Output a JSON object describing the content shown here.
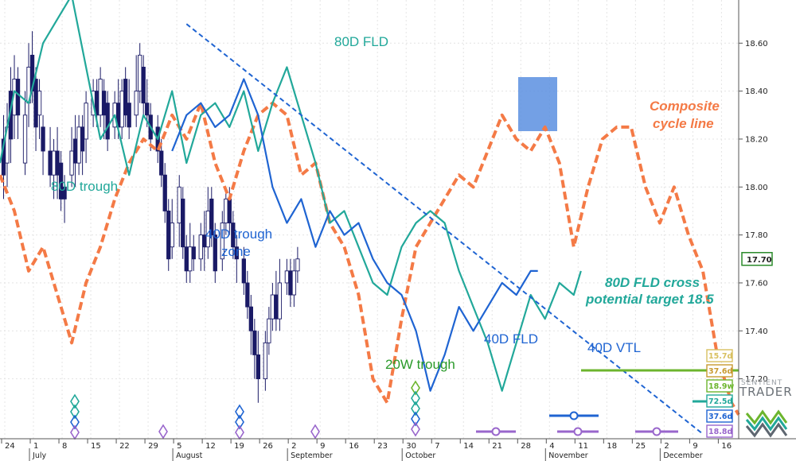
{
  "chart_data": {
    "type": "line",
    "y_axis": {
      "ylim": [
        16.95,
        18.78
      ],
      "ticks": [
        "17.20",
        "17.40",
        "17.60",
        "17.80",
        "18.00",
        "18.20",
        "18.40",
        "18.60"
      ],
      "side": "right"
    },
    "x_axis": {
      "day_ticks": [
        "24",
        "1",
        "8",
        "15",
        "22",
        "29",
        "5",
        "12",
        "19",
        "26",
        "2",
        "9",
        "16",
        "23",
        "30",
        "7",
        "14",
        "21",
        "28",
        "4",
        "11",
        "18",
        "25",
        "2",
        "9",
        "16"
      ],
      "months": [
        "July",
        "August",
        "September",
        "October",
        "November",
        "December"
      ]
    },
    "current_price_label": "17.70",
    "grid": true,
    "colors": {
      "composite": "#f47a46",
      "fld80": "#22a89a",
      "fld40": "#1f64d2",
      "vtl": "#1f64d2",
      "candle_up": "#ffffff",
      "candle_down": "#1a1a66",
      "green": "#6cb52d",
      "purple": "#9966cc",
      "highlight": "#5b8fe0"
    },
    "series": [
      {
        "name": "Composite cycle line",
        "style": "dashed",
        "x": [
          0,
          4,
          8,
          12,
          16,
          20,
          24,
          28,
          32,
          36,
          40,
          44,
          48,
          52,
          56,
          60,
          64,
          68,
          72,
          76,
          80,
          84,
          88,
          92,
          96,
          100,
          104,
          108,
          112,
          116,
          120,
          124,
          128,
          132,
          136,
          140,
          144,
          148,
          152,
          156,
          160,
          164,
          168,
          172,
          176,
          180,
          184,
          188,
          192,
          196,
          200,
          204,
          206
        ],
        "y": [
          18.05,
          17.9,
          17.65,
          17.75,
          17.55,
          17.35,
          17.6,
          17.75,
          17.95,
          18.1,
          18.2,
          18.15,
          18.3,
          18.2,
          18.35,
          18.1,
          17.95,
          18.15,
          18.3,
          18.35,
          18.3,
          18.05,
          18.1,
          17.85,
          17.75,
          17.55,
          17.2,
          17.1,
          17.45,
          17.75,
          17.85,
          17.95,
          18.05,
          18.0,
          18.15,
          18.3,
          18.2,
          18.15,
          18.25,
          18.1,
          17.75,
          18.0,
          18.2,
          18.25,
          18.25,
          18.0,
          17.85,
          18.0,
          17.8,
          17.65,
          17.3,
          17.1,
          17.05
        ]
      },
      {
        "name": "80D FLD",
        "style": "solid",
        "x": [
          0,
          4,
          8,
          12,
          16,
          20,
          24,
          28,
          32,
          36,
          40,
          44,
          48,
          52,
          56,
          60,
          64,
          68,
          72,
          76,
          80,
          84,
          88,
          92,
          96,
          100,
          104,
          108,
          112,
          116,
          120,
          124,
          128,
          132,
          136,
          140,
          144,
          148,
          152,
          156,
          160,
          162
        ],
        "y": [
          18.1,
          18.4,
          18.35,
          18.6,
          18.7,
          18.8,
          18.5,
          18.2,
          18.3,
          18.05,
          18.3,
          18.2,
          18.4,
          18.1,
          18.3,
          18.35,
          18.25,
          18.4,
          18.15,
          18.35,
          18.5,
          18.3,
          18.1,
          17.85,
          17.9,
          17.75,
          17.6,
          17.55,
          17.75,
          17.85,
          17.9,
          17.85,
          17.65,
          17.5,
          17.35,
          17.15,
          17.35,
          17.55,
          17.45,
          17.6,
          17.55,
          17.65
        ]
      },
      {
        "name": "40D FLD",
        "style": "solid",
        "x": [
          48,
          52,
          56,
          60,
          64,
          68,
          72,
          76,
          80,
          84,
          88,
          92,
          96,
          100,
          104,
          108,
          112,
          116,
          120,
          124,
          128,
          132,
          136,
          140,
          144,
          148,
          150
        ],
        "y": [
          18.15,
          18.3,
          18.35,
          18.25,
          18.3,
          18.45,
          18.3,
          18.0,
          17.85,
          17.95,
          17.75,
          17.9,
          17.8,
          17.85,
          17.7,
          17.6,
          17.55,
          17.4,
          17.15,
          17.3,
          17.5,
          17.4,
          17.5,
          17.6,
          17.55,
          17.65,
          17.65
        ]
      },
      {
        "name": "40D VTL",
        "style": "dashed",
        "x": [
          52,
          196
        ],
        "y": [
          18.68,
          16.97
        ]
      }
    ],
    "candles": [
      {
        "x": 1,
        "o": 18.2,
        "c": 18.05,
        "h": 18.3,
        "l": 17.95
      },
      {
        "x": 2,
        "o": 18.1,
        "c": 18.25,
        "h": 18.35,
        "l": 18.0
      },
      {
        "x": 3,
        "o": 18.4,
        "c": 18.2,
        "h": 18.5,
        "l": 18.1
      },
      {
        "x": 4,
        "o": 18.3,
        "c": 18.45,
        "h": 18.55,
        "l": 18.2
      },
      {
        "x": 5,
        "o": 18.45,
        "c": 18.3,
        "h": 18.5,
        "l": 18.2
      },
      {
        "x": 7,
        "o": 18.1,
        "c": 18.3,
        "h": 18.4,
        "l": 18.05
      },
      {
        "x": 8,
        "o": 18.35,
        "c": 18.5,
        "h": 18.6,
        "l": 18.25
      },
      {
        "x": 9,
        "o": 18.55,
        "c": 18.4,
        "h": 18.65,
        "l": 18.35
      },
      {
        "x": 10,
        "o": 18.45,
        "c": 18.25,
        "h": 18.5,
        "l": 18.15
      },
      {
        "x": 11,
        "o": 18.3,
        "c": 18.4,
        "h": 18.45,
        "l": 18.2
      },
      {
        "x": 12,
        "o": 18.25,
        "c": 18.15,
        "h": 18.3,
        "l": 18.05
      },
      {
        "x": 14,
        "o": 18.15,
        "c": 18.05,
        "h": 18.25,
        "l": 18.0
      },
      {
        "x": 15,
        "o": 18.05,
        "c": 18.15,
        "h": 18.2,
        "l": 17.95
      },
      {
        "x": 16,
        "o": 18.15,
        "c": 18.05,
        "h": 18.25,
        "l": 17.95
      },
      {
        "x": 17,
        "o": 18.1,
        "c": 17.95,
        "h": 18.15,
        "l": 17.9
      },
      {
        "x": 18,
        "o": 18.0,
        "c": 17.95,
        "h": 18.05,
        "l": 17.85
      },
      {
        "x": 20,
        "o": 18.05,
        "c": 18.15,
        "h": 18.25,
        "l": 18.0
      },
      {
        "x": 21,
        "o": 18.2,
        "c": 18.1,
        "h": 18.3,
        "l": 18.0
      },
      {
        "x": 22,
        "o": 18.1,
        "c": 18.25,
        "h": 18.3,
        "l": 18.05
      },
      {
        "x": 23,
        "o": 18.25,
        "c": 18.15,
        "h": 18.3,
        "l": 18.05
      },
      {
        "x": 24,
        "o": 18.2,
        "c": 18.35,
        "h": 18.4,
        "l": 18.1
      },
      {
        "x": 26,
        "o": 18.3,
        "c": 18.4,
        "h": 18.45,
        "l": 18.25
      },
      {
        "x": 27,
        "o": 18.4,
        "c": 18.3,
        "h": 18.45,
        "l": 18.25
      },
      {
        "x": 28,
        "o": 18.3,
        "c": 18.45,
        "h": 18.5,
        "l": 18.25
      },
      {
        "x": 29,
        "o": 18.4,
        "c": 18.3,
        "h": 18.45,
        "l": 18.2
      },
      {
        "x": 30,
        "o": 18.35,
        "c": 18.2,
        "h": 18.4,
        "l": 18.15
      },
      {
        "x": 32,
        "o": 18.25,
        "c": 18.35,
        "h": 18.4,
        "l": 18.2
      },
      {
        "x": 33,
        "o": 18.35,
        "c": 18.25,
        "h": 18.45,
        "l": 18.2
      },
      {
        "x": 34,
        "o": 18.25,
        "c": 18.4,
        "h": 18.45,
        "l": 18.2
      },
      {
        "x": 35,
        "o": 18.45,
        "c": 18.3,
        "h": 18.5,
        "l": 18.25
      },
      {
        "x": 36,
        "o": 18.35,
        "c": 18.25,
        "h": 18.45,
        "l": 18.2
      },
      {
        "x": 38,
        "o": 18.3,
        "c": 18.4,
        "h": 18.55,
        "l": 18.25
      },
      {
        "x": 39,
        "o": 18.4,
        "c": 18.55,
        "h": 18.6,
        "l": 18.35
      },
      {
        "x": 40,
        "o": 18.5,
        "c": 18.35,
        "h": 18.55,
        "l": 18.3
      },
      {
        "x": 41,
        "o": 18.35,
        "c": 18.3,
        "h": 18.45,
        "l": 18.25
      },
      {
        "x": 42,
        "o": 18.3,
        "c": 18.2,
        "h": 18.35,
        "l": 18.15
      },
      {
        "x": 44,
        "o": 18.25,
        "c": 18.15,
        "h": 18.3,
        "l": 18.1
      },
      {
        "x": 45,
        "o": 18.15,
        "c": 18.05,
        "h": 18.2,
        "l": 18.0
      },
      {
        "x": 46,
        "o": 18.05,
        "c": 17.9,
        "h": 18.1,
        "l": 17.85
      },
      {
        "x": 47,
        "o": 17.9,
        "c": 17.7,
        "h": 17.95,
        "l": 17.65
      },
      {
        "x": 48,
        "o": 17.75,
        "c": 17.85,
        "h": 17.95,
        "l": 17.7
      },
      {
        "x": 50,
        "o": 17.85,
        "c": 18.0,
        "h": 18.05,
        "l": 17.75
      },
      {
        "x": 51,
        "o": 17.95,
        "c": 17.75,
        "h": 18.0,
        "l": 17.7
      },
      {
        "x": 52,
        "o": 17.75,
        "c": 17.65,
        "h": 17.8,
        "l": 17.6
      },
      {
        "x": 53,
        "o": 17.65,
        "c": 17.75,
        "h": 17.85,
        "l": 17.6
      },
      {
        "x": 54,
        "o": 17.75,
        "c": 17.7,
        "h": 17.8,
        "l": 17.65
      },
      {
        "x": 56,
        "o": 17.7,
        "c": 17.8,
        "h": 17.85,
        "l": 17.65
      },
      {
        "x": 57,
        "o": 17.8,
        "c": 17.75,
        "h": 17.9,
        "l": 17.65
      },
      {
        "x": 58,
        "o": 17.75,
        "c": 17.9,
        "h": 18.0,
        "l": 17.7
      },
      {
        "x": 59,
        "o": 17.95,
        "c": 17.8,
        "h": 18.0,
        "l": 17.75
      },
      {
        "x": 60,
        "o": 17.8,
        "c": 17.65,
        "h": 17.85,
        "l": 17.6
      },
      {
        "x": 62,
        "o": 17.7,
        "c": 17.85,
        "h": 17.9,
        "l": 17.65
      },
      {
        "x": 63,
        "o": 17.85,
        "c": 17.95,
        "h": 18.0,
        "l": 17.8
      },
      {
        "x": 64,
        "o": 17.95,
        "c": 17.85,
        "h": 18.0,
        "l": 17.8
      },
      {
        "x": 65,
        "o": 17.85,
        "c": 17.75,
        "h": 17.9,
        "l": 17.7
      },
      {
        "x": 66,
        "o": 17.75,
        "c": 17.7,
        "h": 17.8,
        "l": 17.6
      },
      {
        "x": 68,
        "o": 17.7,
        "c": 17.6,
        "h": 17.75,
        "l": 17.55
      },
      {
        "x": 69,
        "o": 17.6,
        "c": 17.5,
        "h": 17.65,
        "l": 17.45
      },
      {
        "x": 70,
        "o": 17.5,
        "c": 17.4,
        "h": 17.55,
        "l": 17.3
      },
      {
        "x": 71,
        "o": 17.4,
        "c": 17.3,
        "h": 17.45,
        "l": 17.2
      },
      {
        "x": 72,
        "o": 17.3,
        "c": 17.2,
        "h": 17.4,
        "l": 17.1
      },
      {
        "x": 74,
        "o": 17.2,
        "c": 17.35,
        "h": 17.4,
        "l": 17.15
      },
      {
        "x": 75,
        "o": 17.35,
        "c": 17.45,
        "h": 17.5,
        "l": 17.3
      },
      {
        "x": 76,
        "o": 17.45,
        "c": 17.55,
        "h": 17.6,
        "l": 17.4
      },
      {
        "x": 77,
        "o": 17.55,
        "c": 17.45,
        "h": 17.65,
        "l": 17.4
      },
      {
        "x": 78,
        "o": 17.45,
        "c": 17.6,
        "h": 17.7,
        "l": 17.4
      },
      {
        "x": 80,
        "o": 17.6,
        "c": 17.65,
        "h": 17.7,
        "l": 17.55
      },
      {
        "x": 81,
        "o": 17.65,
        "c": 17.55,
        "h": 17.7,
        "l": 17.5
      },
      {
        "x": 82,
        "o": 17.55,
        "c": 17.65,
        "h": 17.7,
        "l": 17.5
      },
      {
        "x": 83,
        "o": 17.65,
        "c": 17.7,
        "h": 17.75,
        "l": 17.6
      }
    ],
    "annotations": [
      {
        "text": "80D FLD",
        "color": "#22a89a",
        "italic": false
      },
      {
        "text": "80D trough",
        "color": "#22a89a",
        "italic": false
      },
      {
        "text": "40D trough",
        "color": "#1f64d2",
        "italic": false
      },
      {
        "text": "zone",
        "color": "#1f64d2",
        "italic": false
      },
      {
        "text": "40D FLD",
        "color": "#1f64d2",
        "italic": false
      },
      {
        "text": "40D VTL",
        "color": "#1f64d2",
        "italic": false
      },
      {
        "text": "20W trough",
        "color": "#2a9a2a",
        "italic": false
      },
      {
        "text": "80D FLD cross",
        "color": "#22a89a",
        "italic": true
      },
      {
        "text": "potential target 18.5",
        "color": "#22a89a",
        "italic": true
      },
      {
        "text": "Composite",
        "color": "#f47a46",
        "italic": true
      },
      {
        "text": "cycle line",
        "color": "#f47a46",
        "italic": true
      }
    ],
    "badges": [
      {
        "text": "15.7d",
        "color": "#d8c060"
      },
      {
        "text": "37.6d",
        "color": "#c89a30"
      },
      {
        "text": "18.9w",
        "color": "#6cb52d"
      },
      {
        "text": "72.5d",
        "color": "#22a89a"
      },
      {
        "text": "37.6d",
        "color": "#1f64d2"
      },
      {
        "text": "18.8d",
        "color": "#9966cc"
      }
    ],
    "logo": {
      "line1": "SENTIENT",
      "line2": "TRADER"
    }
  }
}
